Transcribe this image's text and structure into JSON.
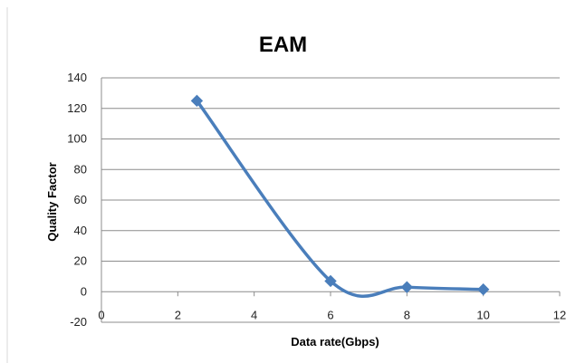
{
  "chart_data": {
    "type": "line",
    "title": "EAM",
    "xlabel": "Data rate(Gbps)",
    "ylabel": "Quality Factor",
    "xlim": [
      0,
      12
    ],
    "ylim": [
      -20,
      140
    ],
    "x_ticks": [
      0,
      2,
      4,
      6,
      8,
      10,
      12
    ],
    "y_ticks": [
      -20,
      0,
      20,
      40,
      60,
      80,
      100,
      120,
      140
    ],
    "grid": "horizontal",
    "legend": "none",
    "series": [
      {
        "color": "#4a7ebb",
        "marker": "diamond",
        "smooth": true,
        "x": [
          2.5,
          6,
          8,
          10
        ],
        "y": [
          125,
          7,
          3,
          1.5
        ]
      }
    ]
  }
}
